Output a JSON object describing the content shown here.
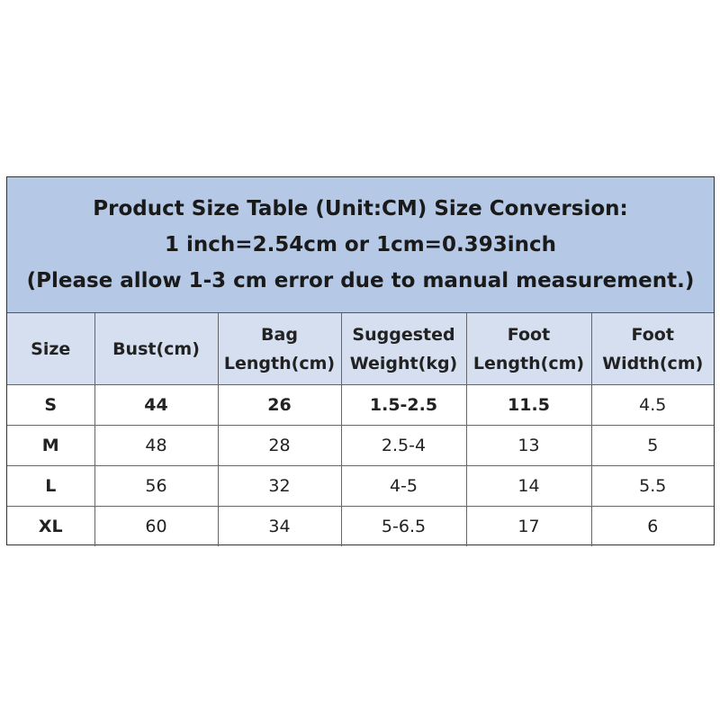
{
  "title": {
    "line1": "Product Size Table (Unit:CM) Size Conversion:",
    "line2": "1 inch=2.54cm or 1cm=0.393inch",
    "line3": "(Please allow 1-3 cm error due to manual measurement.)"
  },
  "headers": [
    [
      "Size"
    ],
    [
      "Bust(cm)"
    ],
    [
      "Bag",
      "Length(cm)"
    ],
    [
      "Suggested",
      "Weight(kg)"
    ],
    [
      "Foot",
      "Length(cm)"
    ],
    [
      "Foot",
      "Width(cm)"
    ]
  ],
  "rows": [
    [
      "S",
      "44",
      "26",
      "1.5-2.5",
      "11.5",
      "4.5"
    ],
    [
      "M",
      "48",
      "28",
      "2.5-4",
      "13",
      "5"
    ],
    [
      "L",
      "56",
      "32",
      "4-5",
      "14",
      "5.5"
    ],
    [
      "XL",
      "60",
      "34",
      "5-6.5",
      "17",
      "6"
    ]
  ],
  "colors": {
    "title_bg": "#b5c9e6",
    "header_bg": "#d5dff0"
  }
}
